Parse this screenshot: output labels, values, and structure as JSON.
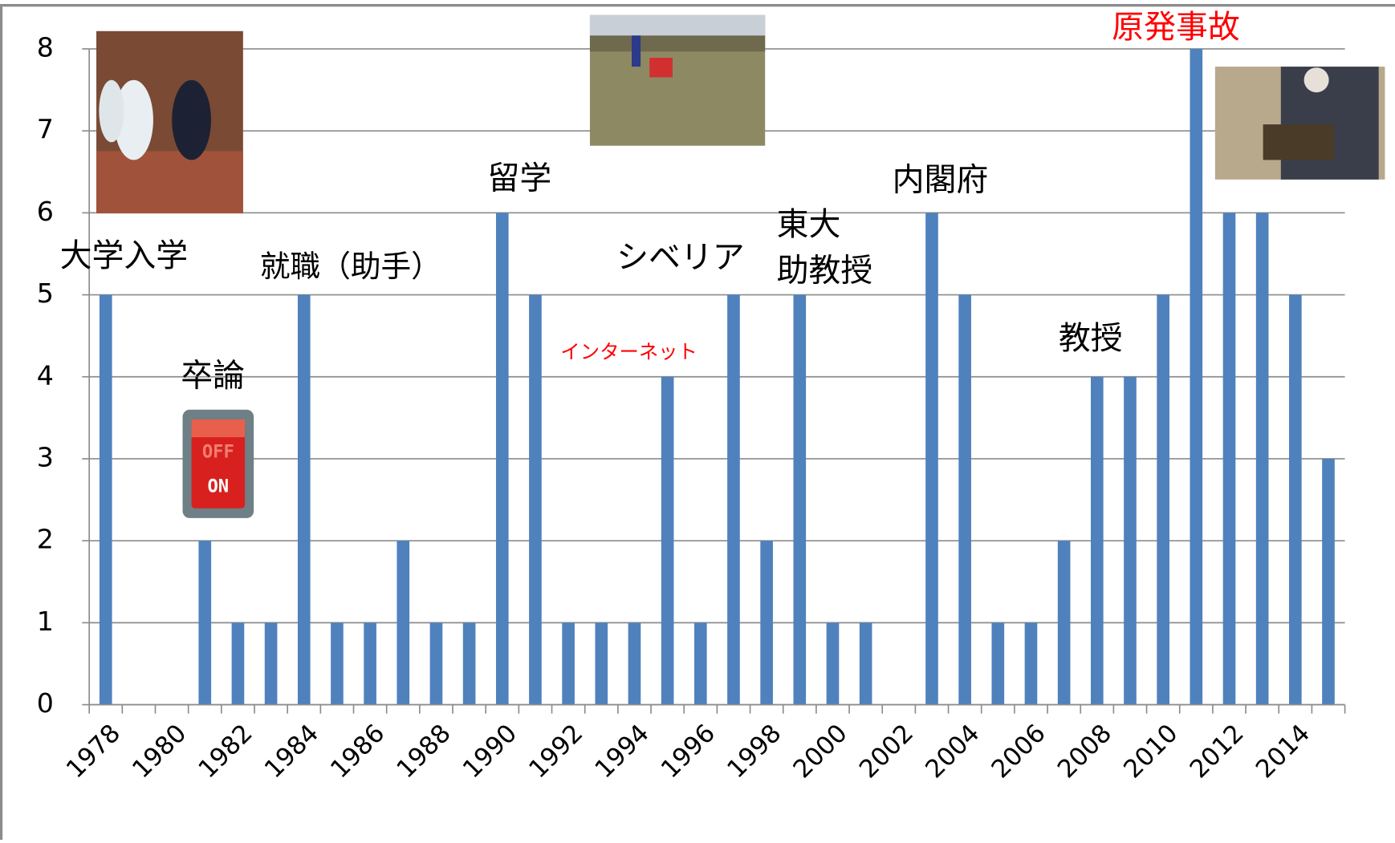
{
  "chart_data": {
    "type": "bar",
    "categories": [
      "1978",
      null,
      "1980",
      null,
      "1982",
      null,
      "1984",
      null,
      "1986",
      null,
      "1988",
      null,
      "1990",
      null,
      "1992",
      null,
      "1994",
      null,
      "1996",
      null,
      "1998",
      null,
      "2000",
      null,
      "2002",
      null,
      "2004",
      null,
      "2006",
      null,
      "2008",
      null,
      "2010",
      null,
      "2012",
      null,
      "2014",
      null
    ],
    "values": [
      5,
      0,
      0,
      2,
      1,
      1,
      5,
      1,
      1,
      2,
      1,
      1,
      6,
      5,
      1,
      1,
      1,
      4,
      1,
      5,
      2,
      5,
      1,
      1,
      0,
      6,
      5,
      1,
      1,
      2,
      4,
      4,
      5,
      8,
      6,
      6,
      5,
      3
    ],
    "color": "#4f81bd",
    "ylim": [
      0,
      8
    ],
    "yticks": [
      0,
      1,
      2,
      3,
      4,
      5,
      6,
      7,
      8
    ],
    "grid": true,
    "annotations": [
      {
        "text": "大学入学",
        "color": "#000000"
      },
      {
        "text": "卒論",
        "color": "#000000"
      },
      {
        "text": "就職（助手）",
        "color": "#000000"
      },
      {
        "text": "留学",
        "color": "#000000"
      },
      {
        "text": "インターネット",
        "color": "#ff0000"
      },
      {
        "text": "シベリア",
        "color": "#000000"
      },
      {
        "text": "東大",
        "color": "#000000"
      },
      {
        "text": "助教授",
        "color": "#000000"
      },
      {
        "text": "内閣府",
        "color": "#000000"
      },
      {
        "text": "教授",
        "color": "#000000"
      },
      {
        "text": "原発事故",
        "color": "#ff0000"
      }
    ],
    "switch_labels": [
      "OFF",
      "ON"
    ]
  }
}
